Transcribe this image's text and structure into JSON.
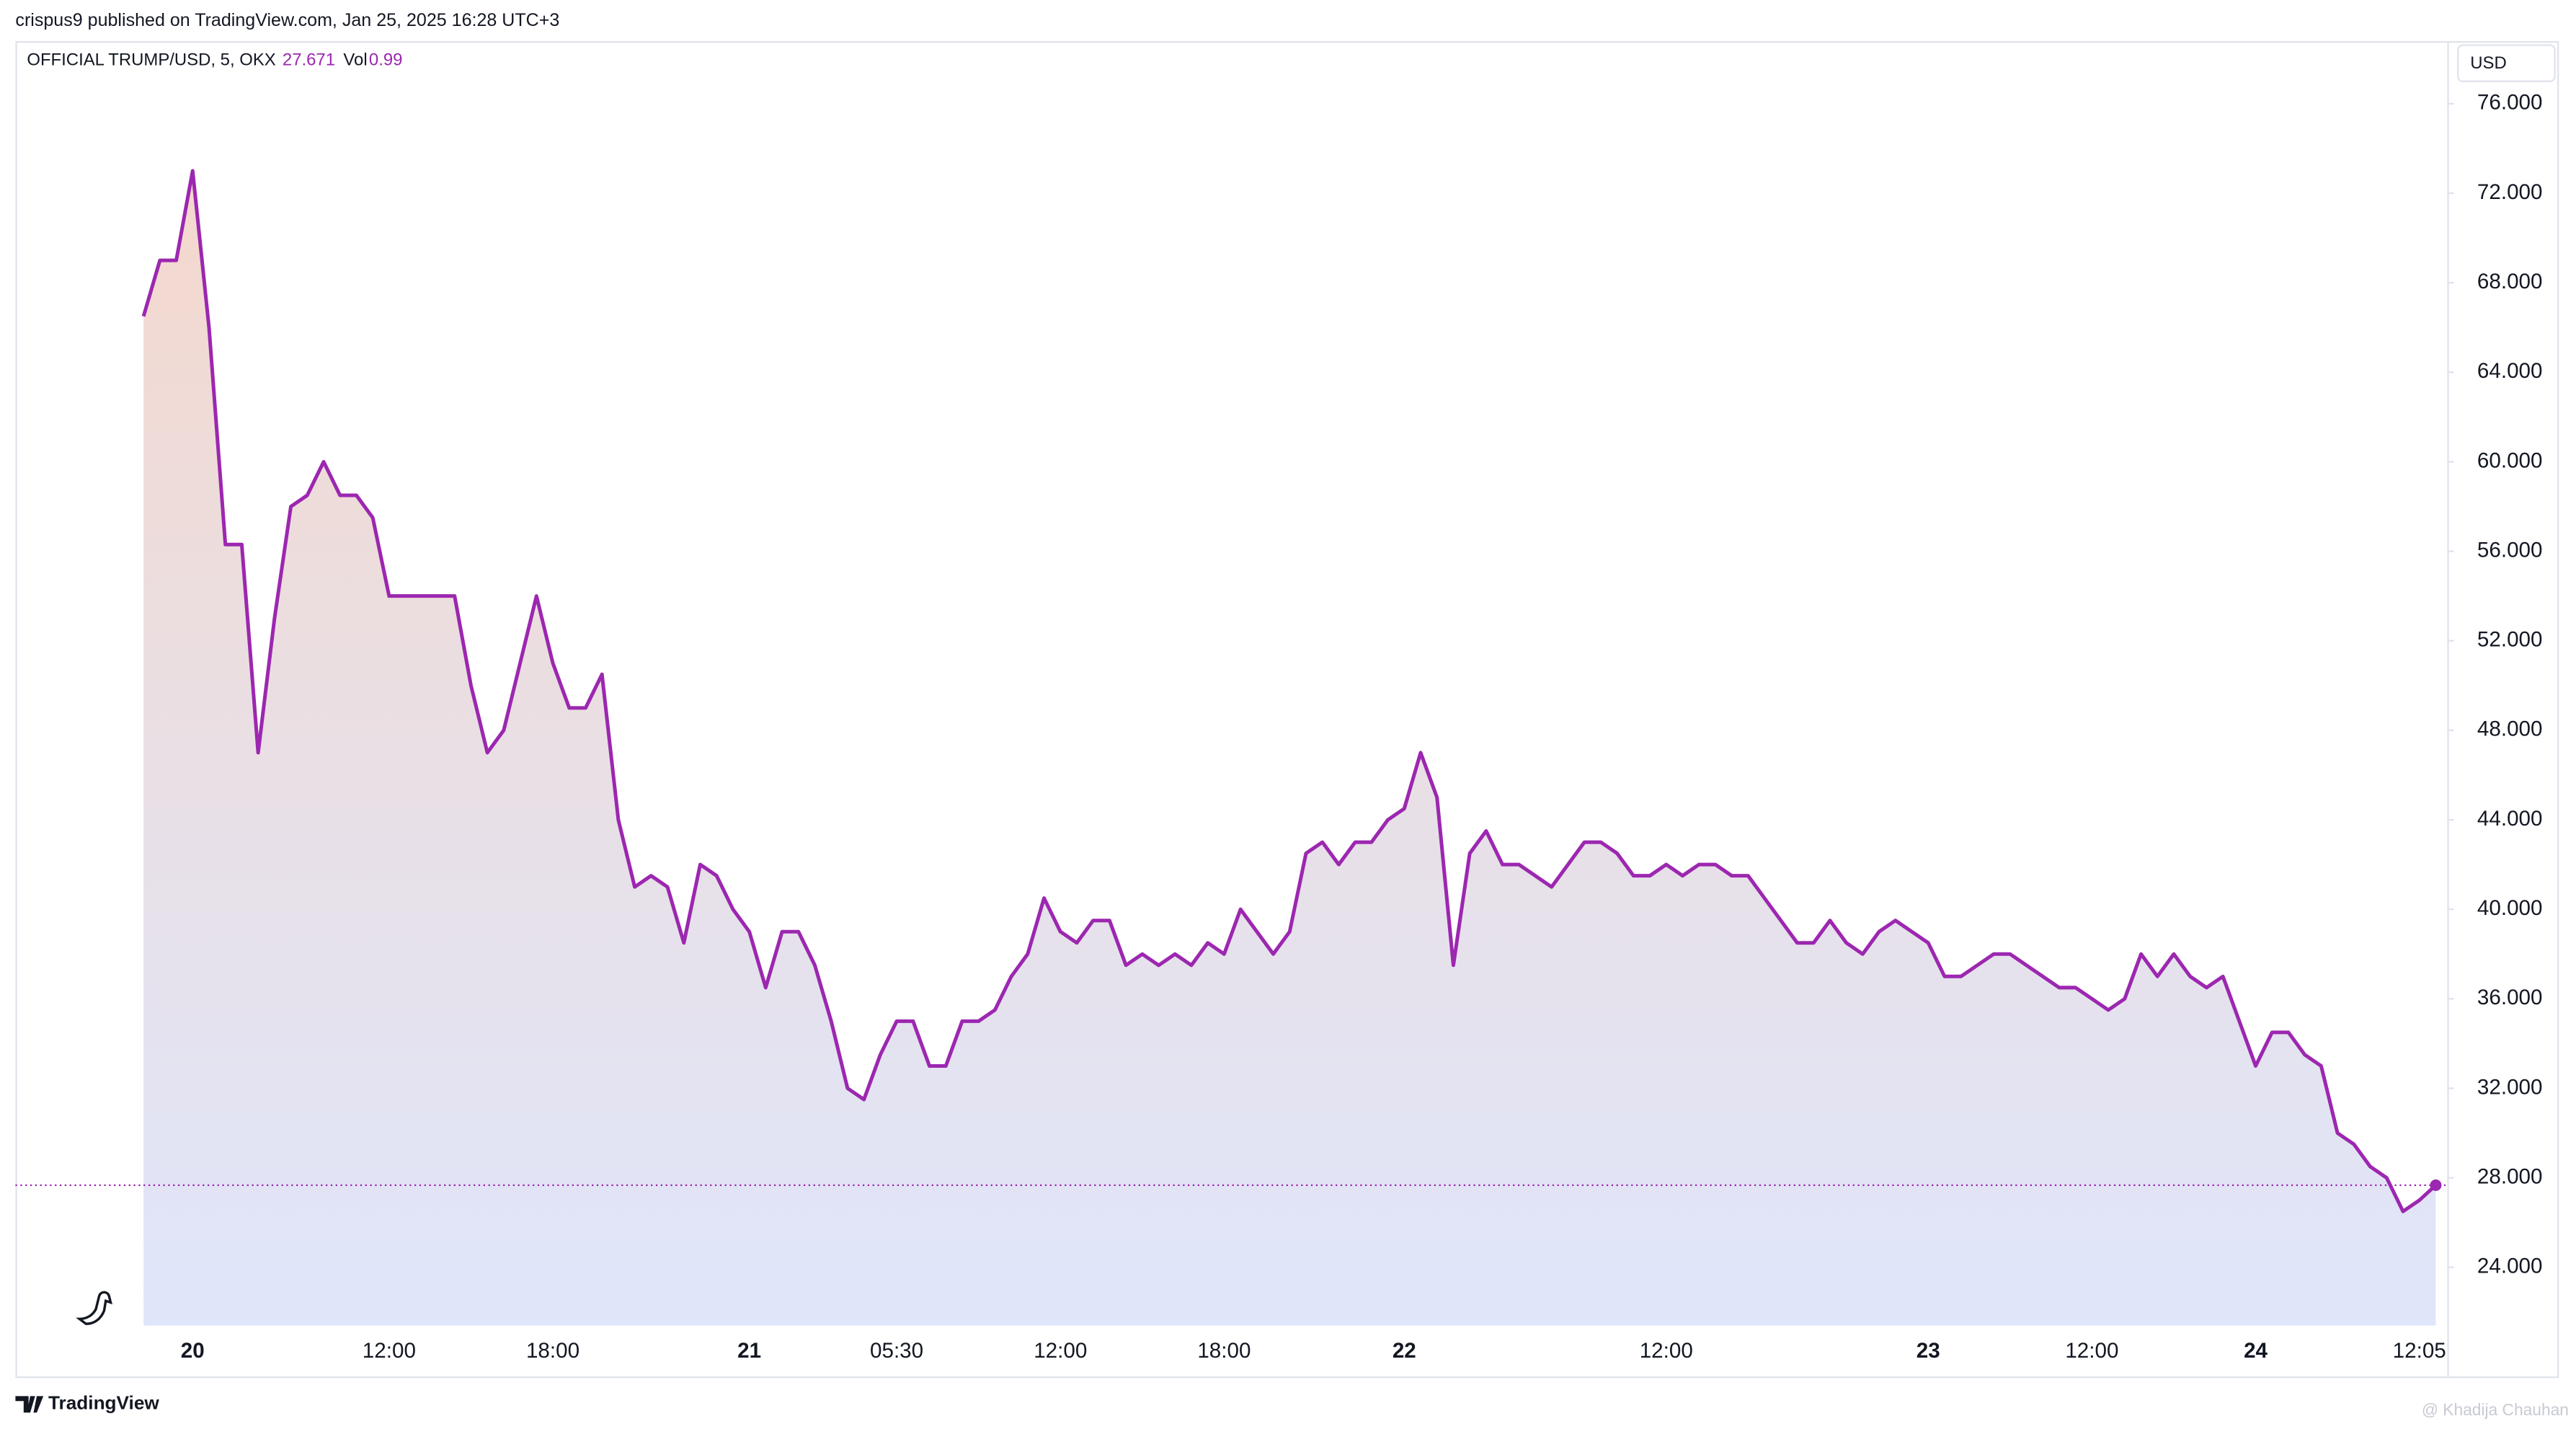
{
  "chart_data": {
    "type": "line",
    "header": "crispus9 published on TradingView.com, Jan 25, 2025 16:28 UTC+3",
    "title": "OFFICIAL TRUMP/USD, 5, OKX",
    "last_value": 27.671,
    "volume_label": "Vol",
    "volume": 0.99,
    "currency": "USD",
    "brand": "TradingView",
    "watermark": "@ Khadija Chauhan",
    "color": "#9c27b0",
    "categories": [
      null,
      null,
      null,
      "20",
      null,
      null,
      null,
      null,
      null,
      null,
      null,
      null,
      null,
      null,
      null,
      "12:00",
      null,
      null,
      null,
      null,
      null,
      null,
      null,
      null,
      null,
      "18:00",
      null,
      null,
      null,
      null,
      null,
      null,
      null,
      null,
      null,
      null,
      null,
      "21",
      null,
      null,
      null,
      null,
      null,
      null,
      null,
      null,
      "05:30",
      null,
      null,
      null,
      null,
      null,
      null,
      null,
      null,
      null,
      "12:00",
      null,
      null,
      null,
      null,
      null,
      null,
      null,
      null,
      null,
      "18:00",
      null,
      null,
      null,
      null,
      null,
      null,
      null,
      null,
      null,
      null,
      "22",
      null,
      null,
      null,
      null,
      null,
      null,
      null,
      null,
      null,
      null,
      null,
      null,
      null,
      null,
      null,
      "12:00",
      null,
      null,
      null,
      null,
      null,
      null,
      null,
      null,
      null,
      null,
      null,
      null,
      null,
      null,
      null,
      "23",
      null,
      null,
      null,
      null,
      null,
      null,
      null,
      null,
      null,
      "12:00",
      null,
      null,
      null,
      null,
      null,
      null,
      null,
      null,
      null,
      "24",
      null,
      null,
      null,
      null,
      null,
      null,
      null,
      null,
      null,
      "12:05",
      null
    ],
    "values": [
      66.5,
      69,
      69,
      73,
      66,
      56.3,
      56.3,
      47,
      53,
      58,
      58.5,
      60,
      58.5,
      58.5,
      57.5,
      54,
      54,
      54,
      54,
      54,
      50,
      47,
      48,
      51,
      54,
      51,
      49,
      49,
      50.5,
      44,
      41,
      41.5,
      41,
      38.5,
      42,
      41.5,
      40,
      39,
      36.5,
      39,
      39,
      37.5,
      35,
      32,
      31.5,
      33.5,
      35,
      35,
      33,
      33,
      35,
      35,
      35.5,
      37,
      38,
      40.5,
      39,
      38.5,
      39.5,
      39.5,
      37.5,
      38,
      37.5,
      38,
      37.5,
      38.5,
      38,
      40,
      39,
      38,
      39,
      42.5,
      43,
      42,
      43,
      43,
      44,
      44.5,
      47,
      45,
      37.5,
      42.5,
      43.5,
      42,
      42,
      41.5,
      41,
      42,
      43,
      43,
      42.5,
      41.5,
      41.5,
      42,
      41.5,
      42,
      42,
      41.5,
      41.5,
      40.5,
      39.5,
      38.5,
      38.5,
      39.5,
      38.5,
      38,
      39,
      39.5,
      39,
      38.5,
      37,
      37,
      37.5,
      38,
      38,
      37.5,
      37,
      36.5,
      36.5,
      36,
      35.5,
      36,
      38,
      37,
      38,
      37,
      36.5,
      37,
      35,
      33,
      34.5,
      34.5,
      33.5,
      33,
      30,
      29.5,
      28.5,
      28,
      26.5,
      27,
      27.671
    ],
    "ylim": [
      21.4,
      78.8
    ],
    "yticks": [
      {
        "value": 24,
        "label": "24.000"
      },
      {
        "value": 28,
        "label": "28.000"
      },
      {
        "value": 32,
        "label": "32.000"
      },
      {
        "value": 36,
        "label": "36.000"
      },
      {
        "value": 40,
        "label": "40.000"
      },
      {
        "value": 44,
        "label": "44.000"
      },
      {
        "value": 48,
        "label": "48.000"
      },
      {
        "value": 52,
        "label": "52.000"
      },
      {
        "value": 56,
        "label": "56.000"
      },
      {
        "value": 60,
        "label": "60.000"
      },
      {
        "value": 64,
        "label": "64.000"
      },
      {
        "value": 68,
        "label": "68.000"
      },
      {
        "value": 72,
        "label": "72.000"
      },
      {
        "value": 76,
        "label": "76.000"
      }
    ]
  }
}
